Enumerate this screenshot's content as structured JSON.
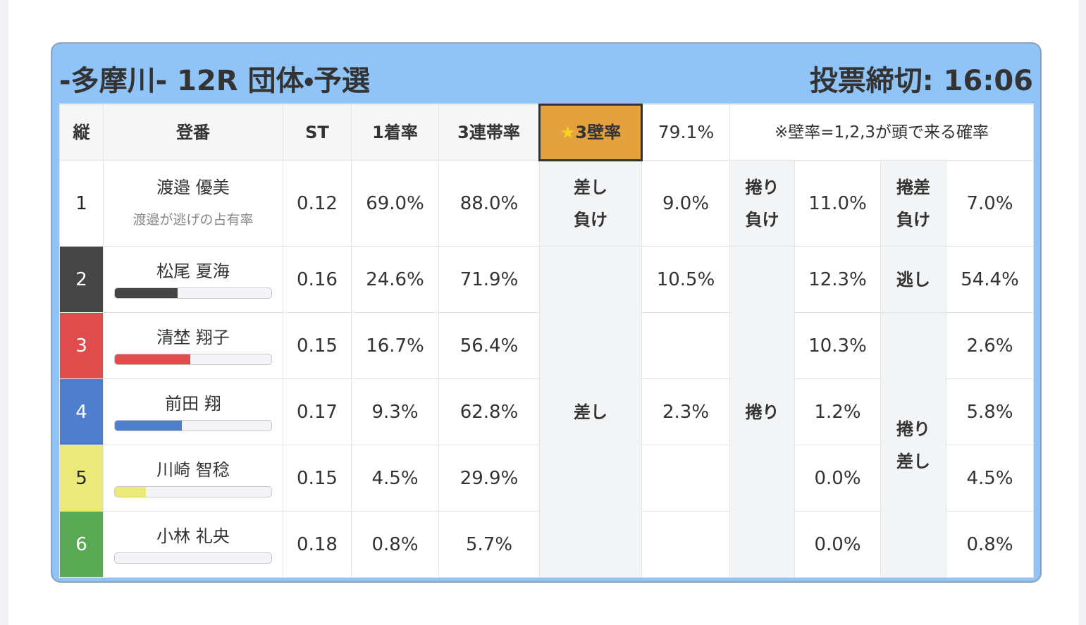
{
  "header": {
    "title": "-多摩川- 12R 団体・予選",
    "deadline": "投票締切: 16:06"
  },
  "table": {
    "columns": [
      "縦",
      "登番",
      "ST",
      "1着率",
      "3連帯率",
      "★3壁率",
      "79.1%",
      "※壁率=1,2,3が頭で来る確率"
    ],
    "rows": [
      {
        "frame": "1",
        "frame_color": "#ffffff",
        "text_color": "#222222",
        "name": "渡邉 優美",
        "note": "渡邉が逃げの占有率",
        "st": "0.12",
        "win": "69.0%",
        "top3": "88.0%"
      },
      {
        "frame": "2",
        "frame_color": "#454545",
        "text_color": "#ffffff",
        "name": "松尾 夏海",
        "bar": 40,
        "st": "0.16",
        "win": "24.6%",
        "top3": "71.9%"
      },
      {
        "frame": "3",
        "frame_color": "#e04b4b",
        "text_color": "#ffffff",
        "name": "清埜 翔子",
        "bar": 48,
        "st": "0.15",
        "win": "16.7%",
        "top3": "56.4%"
      },
      {
        "frame": "4",
        "frame_color": "#4f7fcc",
        "text_color": "#ffffff",
        "name": "前田 翔",
        "bar": 43,
        "st": "0.17",
        "win": "9.3%",
        "top3": "62.8%"
      },
      {
        "frame": "5",
        "frame_color": "#ebe97a",
        "text_color": "#222222",
        "name": "川崎 智稔",
        "bar": 20,
        "st": "0.15",
        "win": "4.5%",
        "top3": "29.9%"
      },
      {
        "frame": "6",
        "frame_color": "#5aaa55",
        "text_color": "#ffffff",
        "name": "小林 礼央",
        "bar": 0,
        "st": "0.18",
        "win": "0.8%",
        "top3": "5.7%"
      }
    ],
    "patterns": {
      "first_row": [
        "差し\n負け",
        "9.0%",
        "捲り\n負け",
        "11.0%",
        "捲差\n負け",
        "7.0%"
      ],
      "sashi": "差し",
      "sashi_values": [
        "10.5%",
        null,
        "2.3%",
        null,
        null
      ],
      "makuri": "捲り",
      "makuri_values": [
        "12.3%",
        "10.3%",
        "1.2%",
        "0.0%",
        "0.0%"
      ],
      "nige": "逃し",
      "nige_value": "54.4%",
      "makurisashi": "捲り\n差し",
      "makurisashi_values": [
        "2.6%",
        "5.8%",
        "4.5%",
        "0.8%"
      ]
    }
  }
}
